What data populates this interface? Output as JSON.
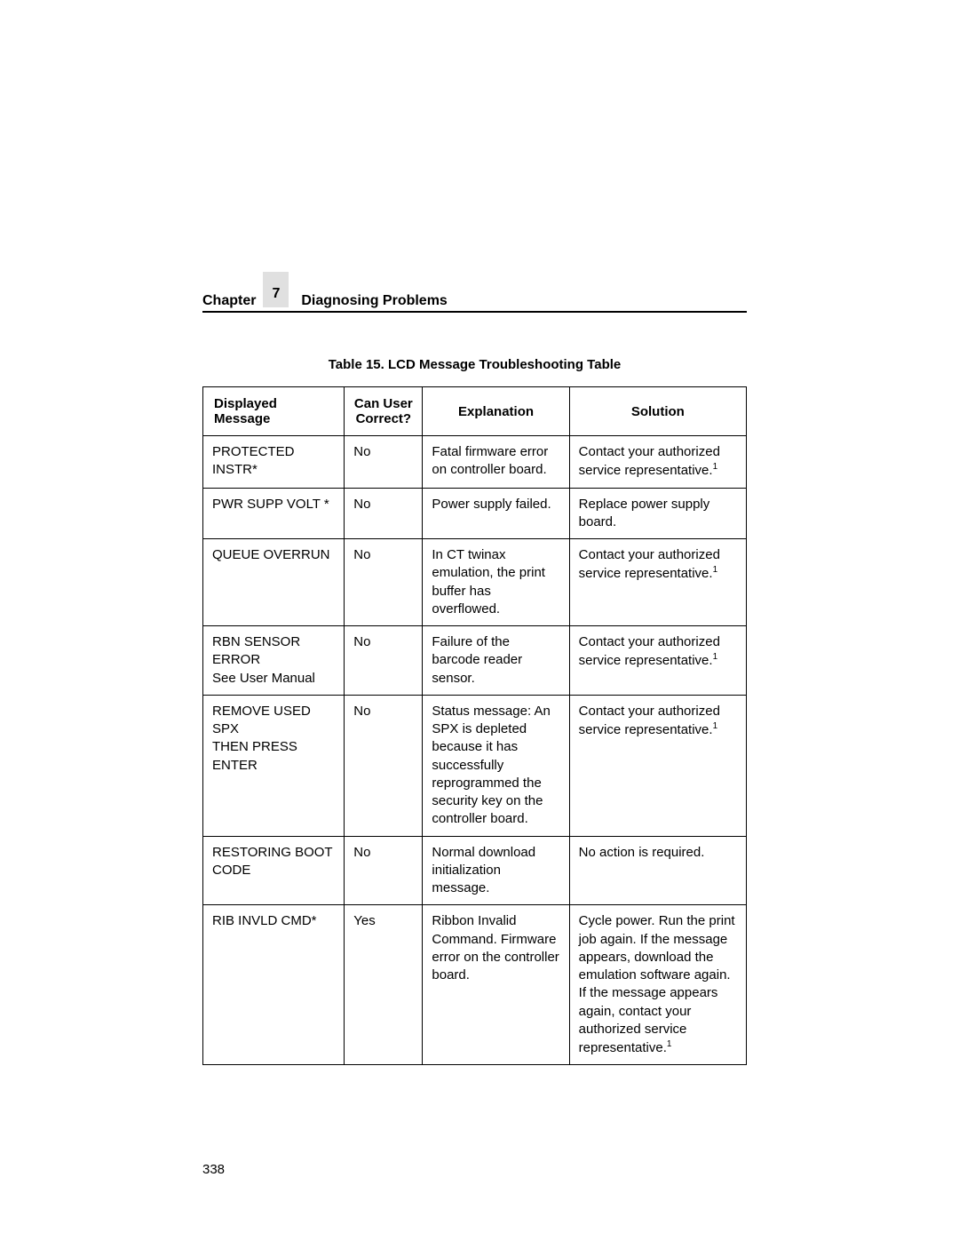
{
  "chapter": {
    "label": "Chapter",
    "number": "7",
    "title": "Diagnosing Problems"
  },
  "table": {
    "caption": "Table 15. LCD Message Troubleshooting Table",
    "columns": {
      "message": "Displayed Message",
      "correct": "Can User Correct?",
      "explanation": "Explanation",
      "solution": "Solution"
    },
    "rows": [
      {
        "message": "PROTECTED INSTR*",
        "correct": "No",
        "explanation": "Fatal firmware error on controller board.",
        "solution_prefix": "Contact your authorized service representative.",
        "solution_suffix": "",
        "footnote": "1"
      },
      {
        "message": "PWR SUPP VOLT *",
        "correct": "No",
        "explanation": "Power supply failed.",
        "solution_prefix": "Replace power supply board.",
        "solution_suffix": "",
        "footnote": ""
      },
      {
        "message": "QUEUE OVERRUN",
        "correct": "No",
        "explanation": "In CT twinax emulation, the print buffer has overflowed.",
        "solution_prefix": "Contact your authorized service representative.",
        "solution_suffix": "",
        "footnote": "1"
      },
      {
        "message": "RBN SENSOR ERROR\nSee User Manual",
        "correct": "No",
        "explanation": "Failure of the barcode reader sensor.",
        "solution_prefix": "Contact your authorized service representative.",
        "solution_suffix": "",
        "footnote": "1"
      },
      {
        "message": "REMOVE USED SPX\nTHEN PRESS ENTER",
        "correct": "No",
        "explanation": "Status message: An SPX is depleted because it has successfully reprogrammed the security key on the controller board.",
        "solution_prefix": "Contact your authorized service representative.",
        "solution_suffix": "",
        "footnote": "1"
      },
      {
        "message": "RESTORING BOOT CODE",
        "correct": "No",
        "explanation": "Normal download initialization message.",
        "solution_prefix": "No action is required.",
        "solution_suffix": "",
        "footnote": ""
      },
      {
        "message": "RIB INVLD CMD*",
        "correct": "Yes",
        "explanation": "Ribbon Invalid Command. Firmware error on the controller board.",
        "solution_prefix": "Cycle power. Run the print job again. If the message appears, download the emulation software again. If the message appears again, contact your authorized service representative.",
        "solution_suffix": "",
        "footnote": "1"
      }
    ]
  },
  "page_number": "338"
}
